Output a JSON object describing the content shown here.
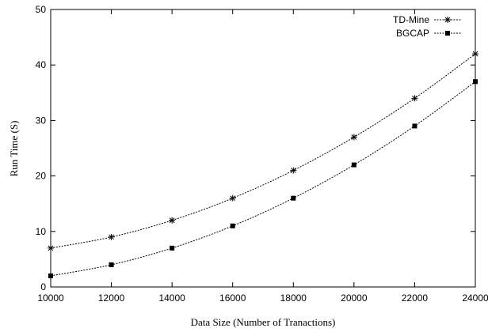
{
  "chart_data": {
    "type": "line",
    "title": "",
    "xlabel": "Data Size (Number of Tranactions)",
    "ylabel": "Run Time (S)",
    "x": [
      10000,
      12000,
      14000,
      16000,
      18000,
      20000,
      22000,
      24000
    ],
    "xlim": [
      10000,
      24000
    ],
    "ylim": [
      0,
      50
    ],
    "xticks": [
      "10000",
      "12000",
      "14000",
      "16000",
      "18000",
      "20000",
      "22000",
      "24000"
    ],
    "yticks": [
      "0",
      "10",
      "20",
      "30",
      "40",
      "50"
    ],
    "grid": false,
    "legend_position": "top-right",
    "series": [
      {
        "name": "TD-Mine",
        "marker": "star",
        "values": [
          7,
          9,
          12,
          16,
          21,
          27,
          34,
          42
        ]
      },
      {
        "name": "BGCAP",
        "marker": "square",
        "values": [
          2,
          4,
          7,
          11,
          16,
          22,
          29,
          37
        ]
      }
    ],
    "colors": {
      "line": "#000000",
      "axis": "#000000",
      "background": "#ffffff"
    }
  }
}
